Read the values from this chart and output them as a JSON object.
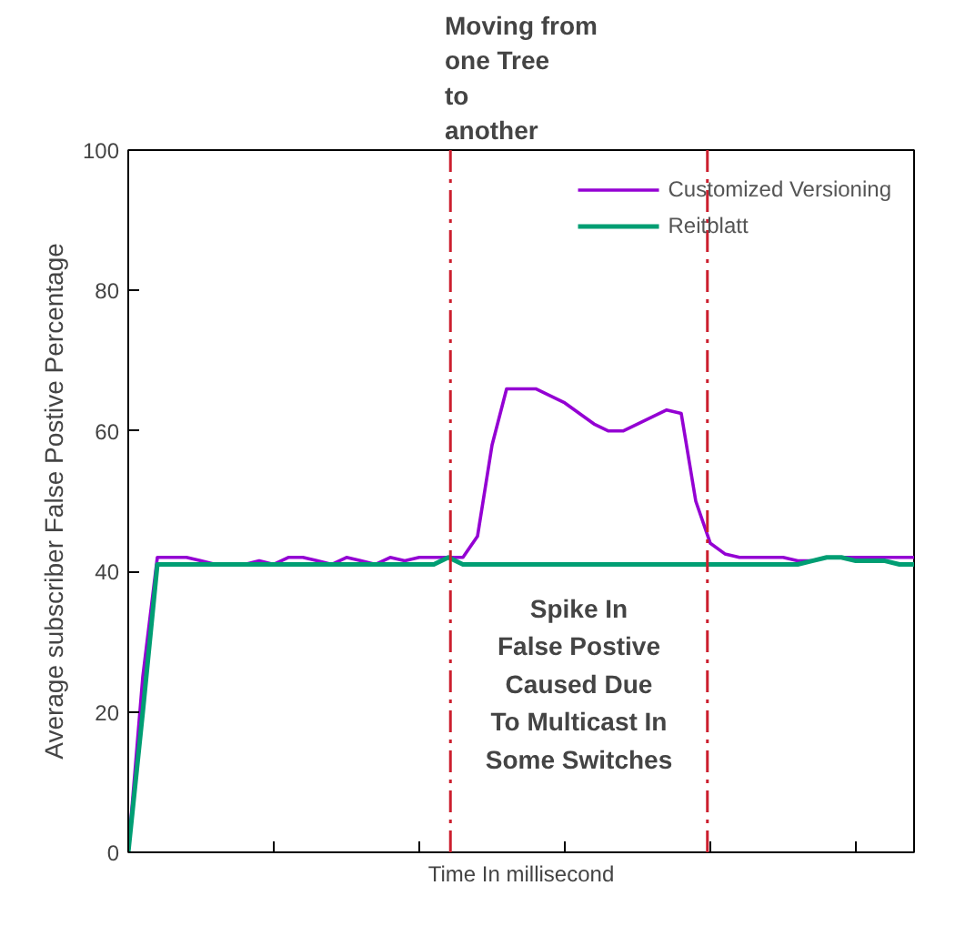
{
  "chart_data": {
    "type": "line",
    "xlabel": "Time In millisecond",
    "ylabel": "Average subscriber False Postive Percentage",
    "categories": [
      null,
      null,
      null,
      null,
      null,
      null,
      null,
      null,
      null,
      null,
      null,
      null,
      null,
      null,
      null,
      null,
      null,
      null,
      null,
      null,
      null,
      null,
      null,
      null,
      null,
      null,
      null,
      null,
      null,
      null,
      null,
      null,
      null,
      null,
      null,
      null,
      null,
      null,
      null,
      null,
      null,
      null,
      null,
      null,
      null,
      null,
      null,
      null,
      null,
      null,
      null,
      null,
      null,
      null,
      null
    ],
    "series": [
      {
        "name": "Customized Versioning",
        "color": "#9400d3",
        "values": [
          0,
          25,
          42,
          42,
          42,
          41.5,
          41,
          41,
          41,
          41.5,
          41,
          42,
          42,
          41.5,
          41,
          42,
          41.5,
          41,
          42,
          41.5,
          42,
          42,
          42,
          42,
          45,
          58,
          66,
          66,
          66,
          65,
          64,
          62.5,
          61,
          60,
          60,
          61,
          62,
          63,
          62.5,
          50,
          44,
          42.5,
          42,
          42,
          42,
          42,
          41.5,
          41.5,
          42,
          42,
          42,
          42,
          42,
          42,
          42
        ]
      },
      {
        "name": "Reitblatt",
        "color": "#009e73",
        "values": [
          0,
          20,
          41,
          41,
          41,
          41,
          41,
          41,
          41,
          41,
          41,
          41,
          41,
          41,
          41,
          41,
          41,
          41,
          41,
          41,
          41,
          41,
          42,
          41,
          41,
          41,
          41,
          41,
          41,
          41,
          41,
          41,
          41,
          41,
          41,
          41,
          41,
          41,
          41,
          41,
          41,
          41,
          41,
          41,
          41,
          41,
          41,
          41.5,
          42,
          42,
          41.5,
          41.5,
          41.5,
          41,
          41
        ]
      }
    ],
    "ylim": [
      0,
      100
    ],
    "yticks": [
      0,
      20,
      40,
      60,
      80,
      100
    ],
    "annotations": [
      "Moving from\none Tree\nto\nanother",
      "Spike In\nFalse Postive\nCaused Due\nTo Multicast In\nSome Switches"
    ],
    "legend": "top right",
    "grid": false,
    "marker": "none",
    "line_style": "solid"
  }
}
